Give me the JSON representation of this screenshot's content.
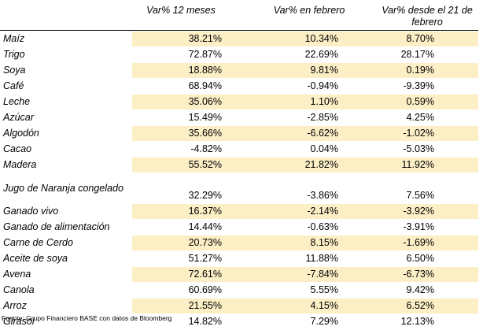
{
  "columns": [
    "Var%  12 meses",
    "Var% en febrero",
    "Var% desde el 21 de febrero"
  ],
  "rows": [
    {
      "name": "Maíz",
      "v12": "38.21%",
      "feb": "10.34%",
      "since21": "8.70%",
      "shaded": true
    },
    {
      "name": "Trigo",
      "v12": "72.87%",
      "feb": "22.69%",
      "since21": "28.17%",
      "shaded": false
    },
    {
      "name": "Soya",
      "v12": "18.88%",
      "feb": "9.81%",
      "since21": "0.19%",
      "shaded": true
    },
    {
      "name": "Café",
      "v12": "68.94%",
      "feb": "-0.94%",
      "since21": "-9.39%",
      "shaded": false
    },
    {
      "name": "Leche",
      "v12": "35.06%",
      "feb": "1.10%",
      "since21": "0.59%",
      "shaded": true
    },
    {
      "name": "Azúcar",
      "v12": "15.49%",
      "feb": "-2.85%",
      "since21": "4.25%",
      "shaded": false
    },
    {
      "name": "Algodón",
      "v12": "35.66%",
      "feb": "-6.62%",
      "since21": "-1.02%",
      "shaded": true
    },
    {
      "name": "Cacao",
      "v12": "-4.82%",
      "feb": "0.04%",
      "since21": "-5.03%",
      "shaded": false
    },
    {
      "name": "Madera",
      "v12": "55.52%",
      "feb": "21.82%",
      "since21": "11.92%",
      "shaded": true
    },
    {
      "name": "Jugo de Naranja congelado",
      "v12": "32.29%",
      "feb": "-3.86%",
      "since21": "7.56%",
      "shaded": false
    },
    {
      "name": "Ganado vivo",
      "v12": "16.37%",
      "feb": "-2.14%",
      "since21": "-3.92%",
      "shaded": true
    },
    {
      "name": "Ganado de alimentación",
      "v12": "14.44%",
      "feb": "-0.63%",
      "since21": "-3.91%",
      "shaded": false
    },
    {
      "name": "Carne de Cerdo",
      "v12": "20.73%",
      "feb": "8.15%",
      "since21": "-1.69%",
      "shaded": true
    },
    {
      "name": "Aceite de soya",
      "v12": "51.27%",
      "feb": "11.88%",
      "since21": "6.50%",
      "shaded": false
    },
    {
      "name": "Avena",
      "v12": "72.61%",
      "feb": "-7.84%",
      "since21": "-6.73%",
      "shaded": true
    },
    {
      "name": "Canola",
      "v12": "60.69%",
      "feb": "5.55%",
      "since21": "9.42%",
      "shaded": false
    },
    {
      "name": "Arroz",
      "v12": "21.55%",
      "feb": "4.15%",
      "since21": "6.52%",
      "shaded": true
    },
    {
      "name": "Girasol",
      "v12": "14.82%",
      "feb": "7.29%",
      "since21": "12.13%",
      "shaded": false
    }
  ],
  "footer": "Fuente: Grupo Financiero BASE con datos de Bloomberg",
  "colors": {
    "shade": "#fcefc6"
  }
}
